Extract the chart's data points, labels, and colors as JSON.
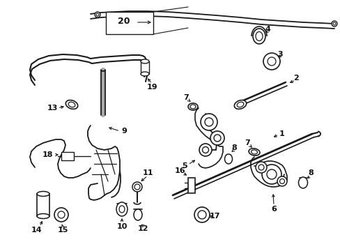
{
  "bg_color": "#ffffff",
  "lc": "#1a1a1a",
  "figsize": [
    4.89,
    3.6
  ],
  "dpi": 100
}
